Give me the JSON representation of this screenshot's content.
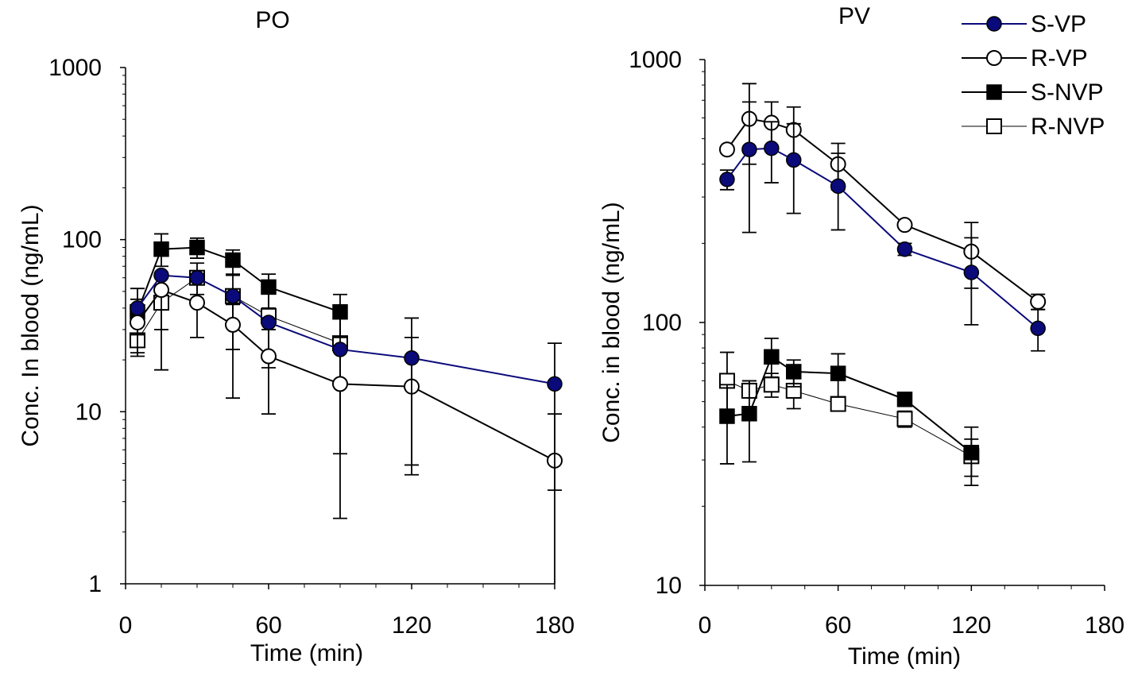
{
  "chart_data": [
    {
      "type": "line",
      "title": "PO",
      "xlabel": "Time (min)",
      "ylabel": "Conc. In blood (ng/mL)",
      "xlim": [
        0,
        180
      ],
      "ylim": [
        1,
        1000
      ],
      "yscale": "log",
      "xticks": [
        0,
        60,
        120,
        180
      ],
      "xtick_labels": [
        "0",
        "60",
        "120",
        "180"
      ],
      "yticks": [
        1,
        10,
        100,
        1000
      ],
      "ytick_labels": [
        "1",
        "10",
        "100",
        "1000"
      ],
      "grid": false,
      "series": [
        {
          "name": "S-VP",
          "marker": "filled-circle",
          "color": "#0a0a7a",
          "line_color": "#0a0a7a",
          "x": [
            5,
            15,
            30,
            45,
            60,
            90,
            120,
            180
          ],
          "y": [
            40,
            62,
            60,
            47,
            33,
            23,
            20.5,
            14.5
          ],
          "err": [
            null,
            null,
            null,
            null,
            null,
            null,
            [
              4.9,
              35
            ],
            [
              3.5,
              25
            ]
          ]
        },
        {
          "name": "R-VP",
          "marker": "open-circle",
          "color": "#000000",
          "line_color": "#000000",
          "x": [
            5,
            15,
            30,
            45,
            60,
            90,
            120,
            180
          ],
          "y": [
            33,
            51,
            43,
            32,
            21,
            14.5,
            14,
            5.2
          ],
          "err": [
            [
              21,
              45
            ],
            [
              17.5,
              60
            ],
            [
              27,
              58
            ],
            [
              12,
              42
            ],
            [
              9.7,
              30
            ],
            [
              2.4,
              40
            ],
            [
              4.3,
              27
            ],
            [
              0.9,
              9.7
            ]
          ]
        },
        {
          "name": "S-NVP",
          "marker": "filled-square",
          "color": "#000000",
          "line_color": "#000000",
          "x": [
            5,
            15,
            30,
            45,
            60,
            90
          ],
          "y": [
            38,
            88,
            90,
            76,
            53,
            38
          ],
          "err": [
            [
              28,
              52
            ],
            [
              70,
              108
            ],
            [
              78,
              102
            ],
            [
              63,
              87
            ],
            [
              40,
              63
            ],
            [
              27,
              48
            ]
          ]
        },
        {
          "name": "R-NVP",
          "marker": "open-square",
          "color": "#000000",
          "line_color": "#000000",
          "x": [
            5,
            15,
            30,
            45,
            60,
            90
          ],
          "y": [
            26,
            43,
            60,
            47,
            36,
            25
          ],
          "err": [
            [
              22,
              32
            ],
            [
              30,
              60
            ],
            [
              48,
              73
            ],
            [
              23,
              62
            ],
            [
              18,
              52
            ],
            [
              5.7,
              36
            ]
          ]
        }
      ]
    },
    {
      "type": "line",
      "title": "PV",
      "xlabel": "Time (min)",
      "ylabel": "Conc. in blood (ng/mL)",
      "xlim": [
        0,
        180
      ],
      "ylim": [
        10,
        1000
      ],
      "yscale": "log",
      "xticks": [
        0,
        60,
        120,
        180
      ],
      "xtick_labels": [
        "0",
        "60",
        "120",
        "180"
      ],
      "yticks": [
        10,
        100,
        1000
      ],
      "ytick_labels": [
        "10",
        "100",
        "1000"
      ],
      "grid": false,
      "legend_position": "top-right",
      "series": [
        {
          "name": "S-VP",
          "marker": "filled-circle",
          "color": "#0a0a7a",
          "line_color": "#0a0a7a",
          "x": [
            10,
            20,
            30,
            40,
            60,
            90,
            120,
            150
          ],
          "y": [
            350,
            455,
            460,
            415,
            330,
            190,
            155,
            95
          ],
          "err": [
            [
              320,
              380
            ],
            [
              220,
              690
            ],
            [
              340,
              580
            ],
            [
              260,
              570
            ],
            [
              225,
              440
            ],
            [
              180,
              200
            ],
            [
              98,
              210
            ],
            [
              78,
              112
            ]
          ]
        },
        {
          "name": "R-VP",
          "marker": "open-circle",
          "color": "#000000",
          "line_color": "#000000",
          "x": [
            10,
            20,
            30,
            40,
            60,
            90,
            120,
            150
          ],
          "y": [
            455,
            595,
            575,
            540,
            400,
            235,
            186,
            120
          ],
          "err": [
            null,
            [
              400,
              810
            ],
            [
              470,
              690
            ],
            [
              420,
              660
            ],
            [
              320,
              480
            ],
            null,
            [
              135,
              240
            ],
            [
              112,
              128
            ]
          ]
        },
        {
          "name": "S-NVP",
          "marker": "filled-square",
          "color": "#000000",
          "line_color": "#000000",
          "x": [
            10,
            20,
            30,
            40,
            60,
            90,
            120
          ],
          "y": [
            44,
            45,
            74,
            65,
            64,
            51,
            32
          ],
          "err": [
            [
              29,
              58
            ],
            [
              29.5,
              60
            ],
            [
              62,
              87
            ],
            [
              57,
              72
            ],
            [
              52,
              76
            ],
            [
              48,
              54
            ],
            [
              24,
              40
            ]
          ]
        },
        {
          "name": "R-NVP",
          "marker": "open-square",
          "color": "#000000",
          "line_color": "#000000",
          "x": [
            10,
            20,
            30,
            40,
            60,
            90,
            120
          ],
          "y": [
            60,
            55,
            58,
            55,
            49,
            43,
            31
          ],
          "err": [
            [
              44,
              77
            ],
            [
              53,
              60
            ],
            [
              52,
              64
            ],
            [
              47,
              62
            ],
            [
              46,
              52
            ],
            [
              40,
              46
            ],
            [
              26,
              36
            ]
          ]
        }
      ]
    }
  ]
}
